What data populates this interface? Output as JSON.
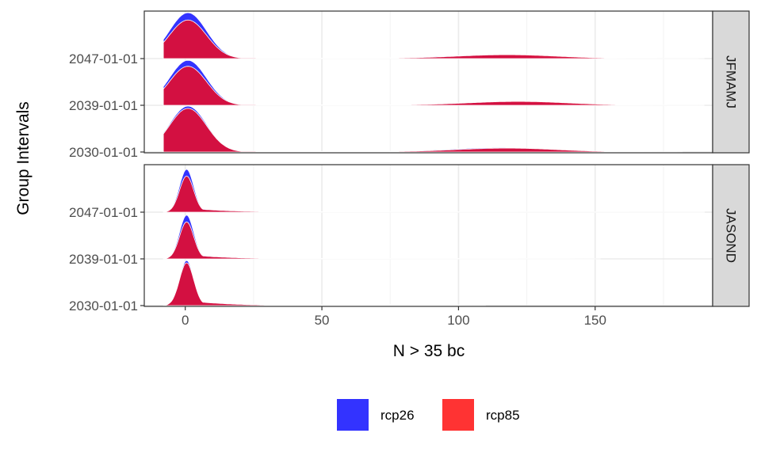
{
  "chart_data": {
    "type": "ridgeline",
    "xlabel": "N > 35 bc",
    "ylabel": "Group Intervals",
    "x_ticks": [
      0,
      50,
      100,
      150
    ],
    "xlim": [
      -15,
      193
    ],
    "y_categories": [
      "2030-01-01",
      "2039-01-01",
      "2047-01-01"
    ],
    "legend": {
      "position": "bottom",
      "entries": [
        {
          "name": "rcp26",
          "color": "#3333FF"
        },
        {
          "name": "rcp85",
          "color": "#FF3333"
        }
      ]
    },
    "overlap_color": "#D90F3B",
    "facets": [
      {
        "name": "JFMAMJ",
        "ridges": [
          {
            "group": "2047-01-01",
            "series": [
              {
                "name": "rcp26",
                "peak_x": 1,
                "peak_height": 1.0,
                "tail_peak_x": 112,
                "tail_height": 0.07,
                "max_x": 178
              },
              {
                "name": "rcp85",
                "peak_x": 1,
                "peak_height": 0.84,
                "tail_peak_x": 118,
                "tail_height": 0.08,
                "max_x": 185
              }
            ]
          },
          {
            "group": "2039-01-01",
            "series": [
              {
                "name": "rcp26",
                "peak_x": 1,
                "peak_height": 0.98,
                "tail_peak_x": 118,
                "tail_height": 0.07,
                "max_x": 180
              },
              {
                "name": "rcp85",
                "peak_x": 1,
                "peak_height": 0.85,
                "tail_peak_x": 122,
                "tail_height": 0.08,
                "max_x": 185
              }
            ]
          },
          {
            "group": "2030-01-01",
            "series": [
              {
                "name": "rcp26",
                "peak_x": 1,
                "peak_height": 1.0,
                "tail_peak_x": 115,
                "tail_height": 0.09,
                "max_x": 170
              },
              {
                "name": "rcp85",
                "peak_x": 1,
                "peak_height": 0.95,
                "tail_peak_x": 118,
                "tail_height": 0.08,
                "max_x": 172
              }
            ]
          }
        ]
      },
      {
        "name": "JASOND",
        "ridges": [
          {
            "group": "2047-01-01",
            "series": [
              {
                "name": "rcp26",
                "peak_x": 0.5,
                "peak_height": 0.95,
                "tail_peak_x": null,
                "tail_height": 0,
                "max_x": 185
              },
              {
                "name": "rcp85",
                "peak_x": 0.5,
                "peak_height": 0.8,
                "tail_peak_x": null,
                "tail_height": 0,
                "max_x": 190
              }
            ]
          },
          {
            "group": "2039-01-01",
            "series": [
              {
                "name": "rcp26",
                "peak_x": 0.5,
                "peak_height": 0.97,
                "tail_peak_x": null,
                "tail_height": 0,
                "max_x": 140
              },
              {
                "name": "rcp85",
                "peak_x": 0.5,
                "peak_height": 0.82,
                "tail_peak_x": null,
                "tail_height": 0,
                "max_x": 142
              }
            ]
          },
          {
            "group": "2030-01-01",
            "series": [
              {
                "name": "rcp26",
                "peak_x": 0.5,
                "peak_height": 1.0,
                "tail_peak_x": null,
                "tail_height": 0,
                "max_x": 100
              },
              {
                "name": "rcp85",
                "peak_x": 0.5,
                "peak_height": 0.95,
                "tail_peak_x": null,
                "tail_height": 0,
                "max_x": 100
              }
            ]
          }
        ]
      }
    ]
  }
}
